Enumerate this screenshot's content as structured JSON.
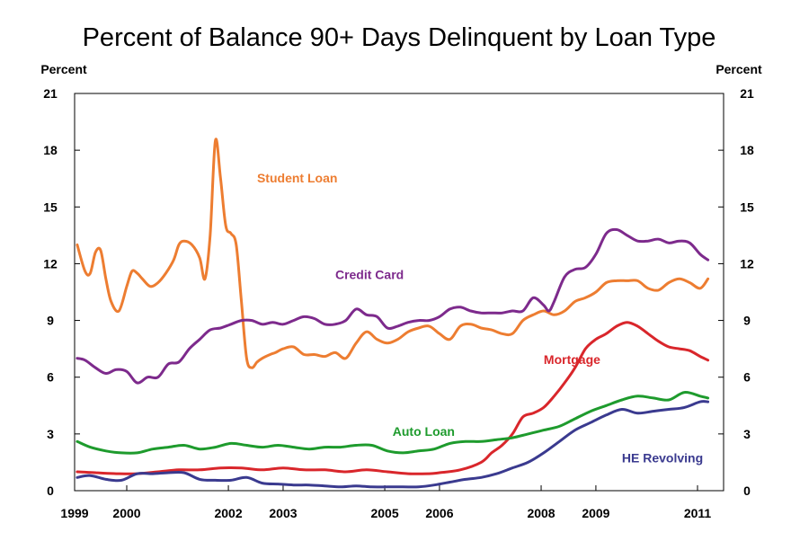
{
  "chart_data": {
    "type": "line",
    "title": "Percent of Balance 90+ Days Delinquent by Loan Type",
    "ylabel_left": "Percent",
    "ylabel_right": "Percent",
    "xlim": [
      1999.0,
      2011.45
    ],
    "ylim": [
      0,
      21
    ],
    "x_ticks": [
      1999,
      2000,
      2002,
      2003,
      2005,
      2006,
      2008,
      2009,
      2011
    ],
    "x_tick_labels": [
      "1999",
      "2000",
      "2002",
      "2003",
      "2005",
      "2006",
      "2008",
      "2009",
      "2011"
    ],
    "x_tick_positions": [
      1999,
      2000,
      2001.95,
      2003,
      2004.95,
      2006,
      2007.95,
      2009,
      2010.95
    ],
    "y_ticks": [
      0,
      3,
      6,
      9,
      12,
      15,
      18,
      21
    ],
    "y_tick_labels": [
      "0",
      "3",
      "6",
      "9",
      "12",
      "15",
      "18",
      "21"
    ],
    "grid": false,
    "series": [
      {
        "name": "Student Loan",
        "color": "#ED7D31",
        "x": [
          1999.05,
          1999.2,
          1999.3,
          1999.4,
          1999.5,
          1999.6,
          1999.7,
          1999.85,
          2000.0,
          2000.1,
          2000.2,
          2000.3,
          2000.45,
          2000.6,
          2000.75,
          2000.9,
          2001.0,
          2001.1,
          2001.25,
          2001.4,
          2001.5,
          2001.6,
          2001.7,
          2001.8,
          2001.9,
          2002.0,
          2002.1,
          2002.2,
          2002.3,
          2002.4,
          2002.5,
          2002.6,
          2002.75,
          2002.85,
          2003.0,
          2003.2,
          2003.4,
          2003.6,
          2003.8,
          2004.0,
          2004.2,
          2004.4,
          2004.6,
          2004.8,
          2005.0,
          2005.2,
          2005.4,
          2005.6,
          2005.8,
          2006.0,
          2006.2,
          2006.4,
          2006.6,
          2006.8,
          2007.0,
          2007.2,
          2007.4,
          2007.6,
          2007.8,
          2008.0,
          2008.2,
          2008.4,
          2008.6,
          2008.8,
          2009.0,
          2009.2,
          2009.4,
          2009.6,
          2009.8,
          2010.0,
          2010.2,
          2010.4,
          2010.6,
          2010.8,
          2011.0,
          2011.15
        ],
        "y": [
          13.0,
          11.6,
          11.5,
          12.6,
          12.7,
          11.2,
          10.0,
          9.5,
          10.8,
          11.6,
          11.5,
          11.2,
          10.8,
          11.0,
          11.5,
          12.2,
          13.0,
          13.2,
          13.0,
          12.3,
          11.2,
          13.5,
          18.5,
          16.5,
          14.0,
          13.6,
          13.0,
          10.0,
          7.0,
          6.5,
          6.8,
          7.0,
          7.2,
          7.3,
          7.5,
          7.6,
          7.2,
          7.2,
          7.1,
          7.3,
          7.0,
          7.8,
          8.4,
          8.0,
          7.8,
          8.0,
          8.4,
          8.6,
          8.7,
          8.3,
          8.0,
          8.7,
          8.8,
          8.6,
          8.5,
          8.3,
          8.3,
          9.0,
          9.3,
          9.5,
          9.3,
          9.5,
          10.0,
          10.2,
          10.5,
          11.0,
          11.1,
          11.1,
          11.1,
          10.7,
          10.6,
          11.0,
          11.2,
          11.0,
          10.7,
          11.2
        ]
      },
      {
        "name": "Credit Card",
        "color": "#7D2A8C",
        "x": [
          1999.05,
          1999.2,
          1999.4,
          1999.6,
          1999.8,
          2000.0,
          2000.2,
          2000.4,
          2000.6,
          2000.8,
          2001.0,
          2001.2,
          2001.4,
          2001.6,
          2001.8,
          2002.0,
          2002.2,
          2002.4,
          2002.6,
          2002.8,
          2003.0,
          2003.2,
          2003.4,
          2003.6,
          2003.8,
          2004.0,
          2004.2,
          2004.4,
          2004.6,
          2004.8,
          2005.0,
          2005.2,
          2005.4,
          2005.6,
          2005.8,
          2006.0,
          2006.2,
          2006.4,
          2006.6,
          2006.8,
          2007.0,
          2007.2,
          2007.4,
          2007.6,
          2007.8,
          2008.0,
          2008.1,
          2008.2,
          2008.4,
          2008.6,
          2008.8,
          2009.0,
          2009.2,
          2009.4,
          2009.6,
          2009.8,
          2010.0,
          2010.2,
          2010.4,
          2010.6,
          2010.8,
          2011.0,
          2011.15
        ],
        "y": [
          7.0,
          6.9,
          6.5,
          6.2,
          6.4,
          6.3,
          5.7,
          6.0,
          6.0,
          6.7,
          6.8,
          7.5,
          8.0,
          8.5,
          8.6,
          8.8,
          9.0,
          9.0,
          8.8,
          8.9,
          8.8,
          9.0,
          9.2,
          9.1,
          8.8,
          8.8,
          9.0,
          9.6,
          9.3,
          9.2,
          8.6,
          8.7,
          8.9,
          9.0,
          9.0,
          9.2,
          9.6,
          9.7,
          9.5,
          9.4,
          9.4,
          9.4,
          9.5,
          9.5,
          10.2,
          9.8,
          9.5,
          10.0,
          11.3,
          11.7,
          11.8,
          12.5,
          13.6,
          13.8,
          13.5,
          13.2,
          13.2,
          13.3,
          13.1,
          13.2,
          13.1,
          12.5,
          12.2
        ]
      },
      {
        "name": "Mortgage",
        "color": "#D9262B",
        "x": [
          1999.05,
          1999.4,
          1999.8,
          2000.2,
          2000.6,
          2001.0,
          2001.4,
          2001.8,
          2002.2,
          2002.6,
          2003.0,
          2003.4,
          2003.8,
          2004.2,
          2004.6,
          2005.0,
          2005.4,
          2005.8,
          2006.0,
          2006.4,
          2006.8,
          2007.0,
          2007.2,
          2007.4,
          2007.6,
          2007.8,
          2008.0,
          2008.2,
          2008.4,
          2008.6,
          2008.8,
          2009.0,
          2009.2,
          2009.4,
          2009.6,
          2009.8,
          2010.0,
          2010.2,
          2010.4,
          2010.6,
          2010.8,
          2011.0,
          2011.15
        ],
        "y": [
          1.0,
          0.95,
          0.9,
          0.9,
          1.0,
          1.1,
          1.1,
          1.2,
          1.2,
          1.1,
          1.2,
          1.1,
          1.1,
          1.0,
          1.1,
          1.0,
          0.9,
          0.9,
          0.95,
          1.1,
          1.5,
          2.0,
          2.4,
          3.0,
          3.9,
          4.1,
          4.4,
          5.0,
          5.7,
          6.5,
          7.5,
          8.0,
          8.3,
          8.7,
          8.9,
          8.7,
          8.3,
          7.9,
          7.6,
          7.5,
          7.4,
          7.1,
          6.9
        ]
      },
      {
        "name": "Auto Loan",
        "color": "#1E9B2D",
        "x": [
          1999.05,
          1999.3,
          1999.6,
          1999.9,
          2000.2,
          2000.5,
          2000.8,
          2001.1,
          2001.4,
          2001.7,
          2002.0,
          2002.3,
          2002.6,
          2002.9,
          2003.2,
          2003.5,
          2003.8,
          2004.1,
          2004.4,
          2004.7,
          2005.0,
          2005.3,
          2005.6,
          2005.9,
          2006.2,
          2006.5,
          2006.8,
          2007.1,
          2007.4,
          2007.7,
          2008.0,
          2008.3,
          2008.6,
          2008.9,
          2009.2,
          2009.5,
          2009.8,
          2010.1,
          2010.4,
          2010.7,
          2011.0,
          2011.15
        ],
        "y": [
          2.6,
          2.3,
          2.1,
          2.0,
          2.0,
          2.2,
          2.3,
          2.4,
          2.2,
          2.3,
          2.5,
          2.4,
          2.3,
          2.4,
          2.3,
          2.2,
          2.3,
          2.3,
          2.4,
          2.4,
          2.1,
          2.0,
          2.1,
          2.2,
          2.5,
          2.6,
          2.6,
          2.7,
          2.8,
          3.0,
          3.2,
          3.4,
          3.8,
          4.2,
          4.5,
          4.8,
          5.0,
          4.9,
          4.8,
          5.2,
          5.0,
          4.9
        ]
      },
      {
        "name": "HE Revolving",
        "color": "#3A3A8F",
        "x": [
          1999.05,
          1999.3,
          1999.6,
          1999.9,
          2000.2,
          2000.5,
          2000.8,
          2001.1,
          2001.4,
          2001.7,
          2002.0,
          2002.3,
          2002.6,
          2002.9,
          2003.2,
          2003.5,
          2003.8,
          2004.1,
          2004.4,
          2004.7,
          2005.0,
          2005.3,
          2005.6,
          2005.9,
          2006.2,
          2006.5,
          2006.8,
          2007.1,
          2007.4,
          2007.7,
          2008.0,
          2008.3,
          2008.6,
          2008.9,
          2009.2,
          2009.5,
          2009.8,
          2010.1,
          2010.4,
          2010.7,
          2011.0,
          2011.15
        ],
        "y": [
          0.7,
          0.8,
          0.6,
          0.55,
          0.9,
          0.9,
          0.95,
          0.95,
          0.6,
          0.55,
          0.55,
          0.7,
          0.4,
          0.35,
          0.3,
          0.3,
          0.25,
          0.2,
          0.25,
          0.2,
          0.2,
          0.2,
          0.2,
          0.3,
          0.45,
          0.6,
          0.7,
          0.9,
          1.2,
          1.5,
          2.0,
          2.6,
          3.2,
          3.6,
          4.0,
          4.3,
          4.1,
          4.2,
          4.3,
          4.4,
          4.7,
          4.7
        ]
      }
    ],
    "annotations": [
      {
        "text": "Student Loan",
        "series": "Student Loan",
        "x": 2002.5,
        "y": 16.3
      },
      {
        "text": "Credit Card",
        "series": "Credit Card",
        "x": 2004.0,
        "y": 11.2
      },
      {
        "text": "Mortgage",
        "series": "Mortgage",
        "x": 2008.0,
        "y": 6.7
      },
      {
        "text": "Auto Loan",
        "series": "Auto Loan",
        "x": 2005.1,
        "y": 2.9
      },
      {
        "text": "HE Revolving",
        "series": "HE Revolving",
        "x": 2009.5,
        "y": 1.5
      }
    ]
  }
}
